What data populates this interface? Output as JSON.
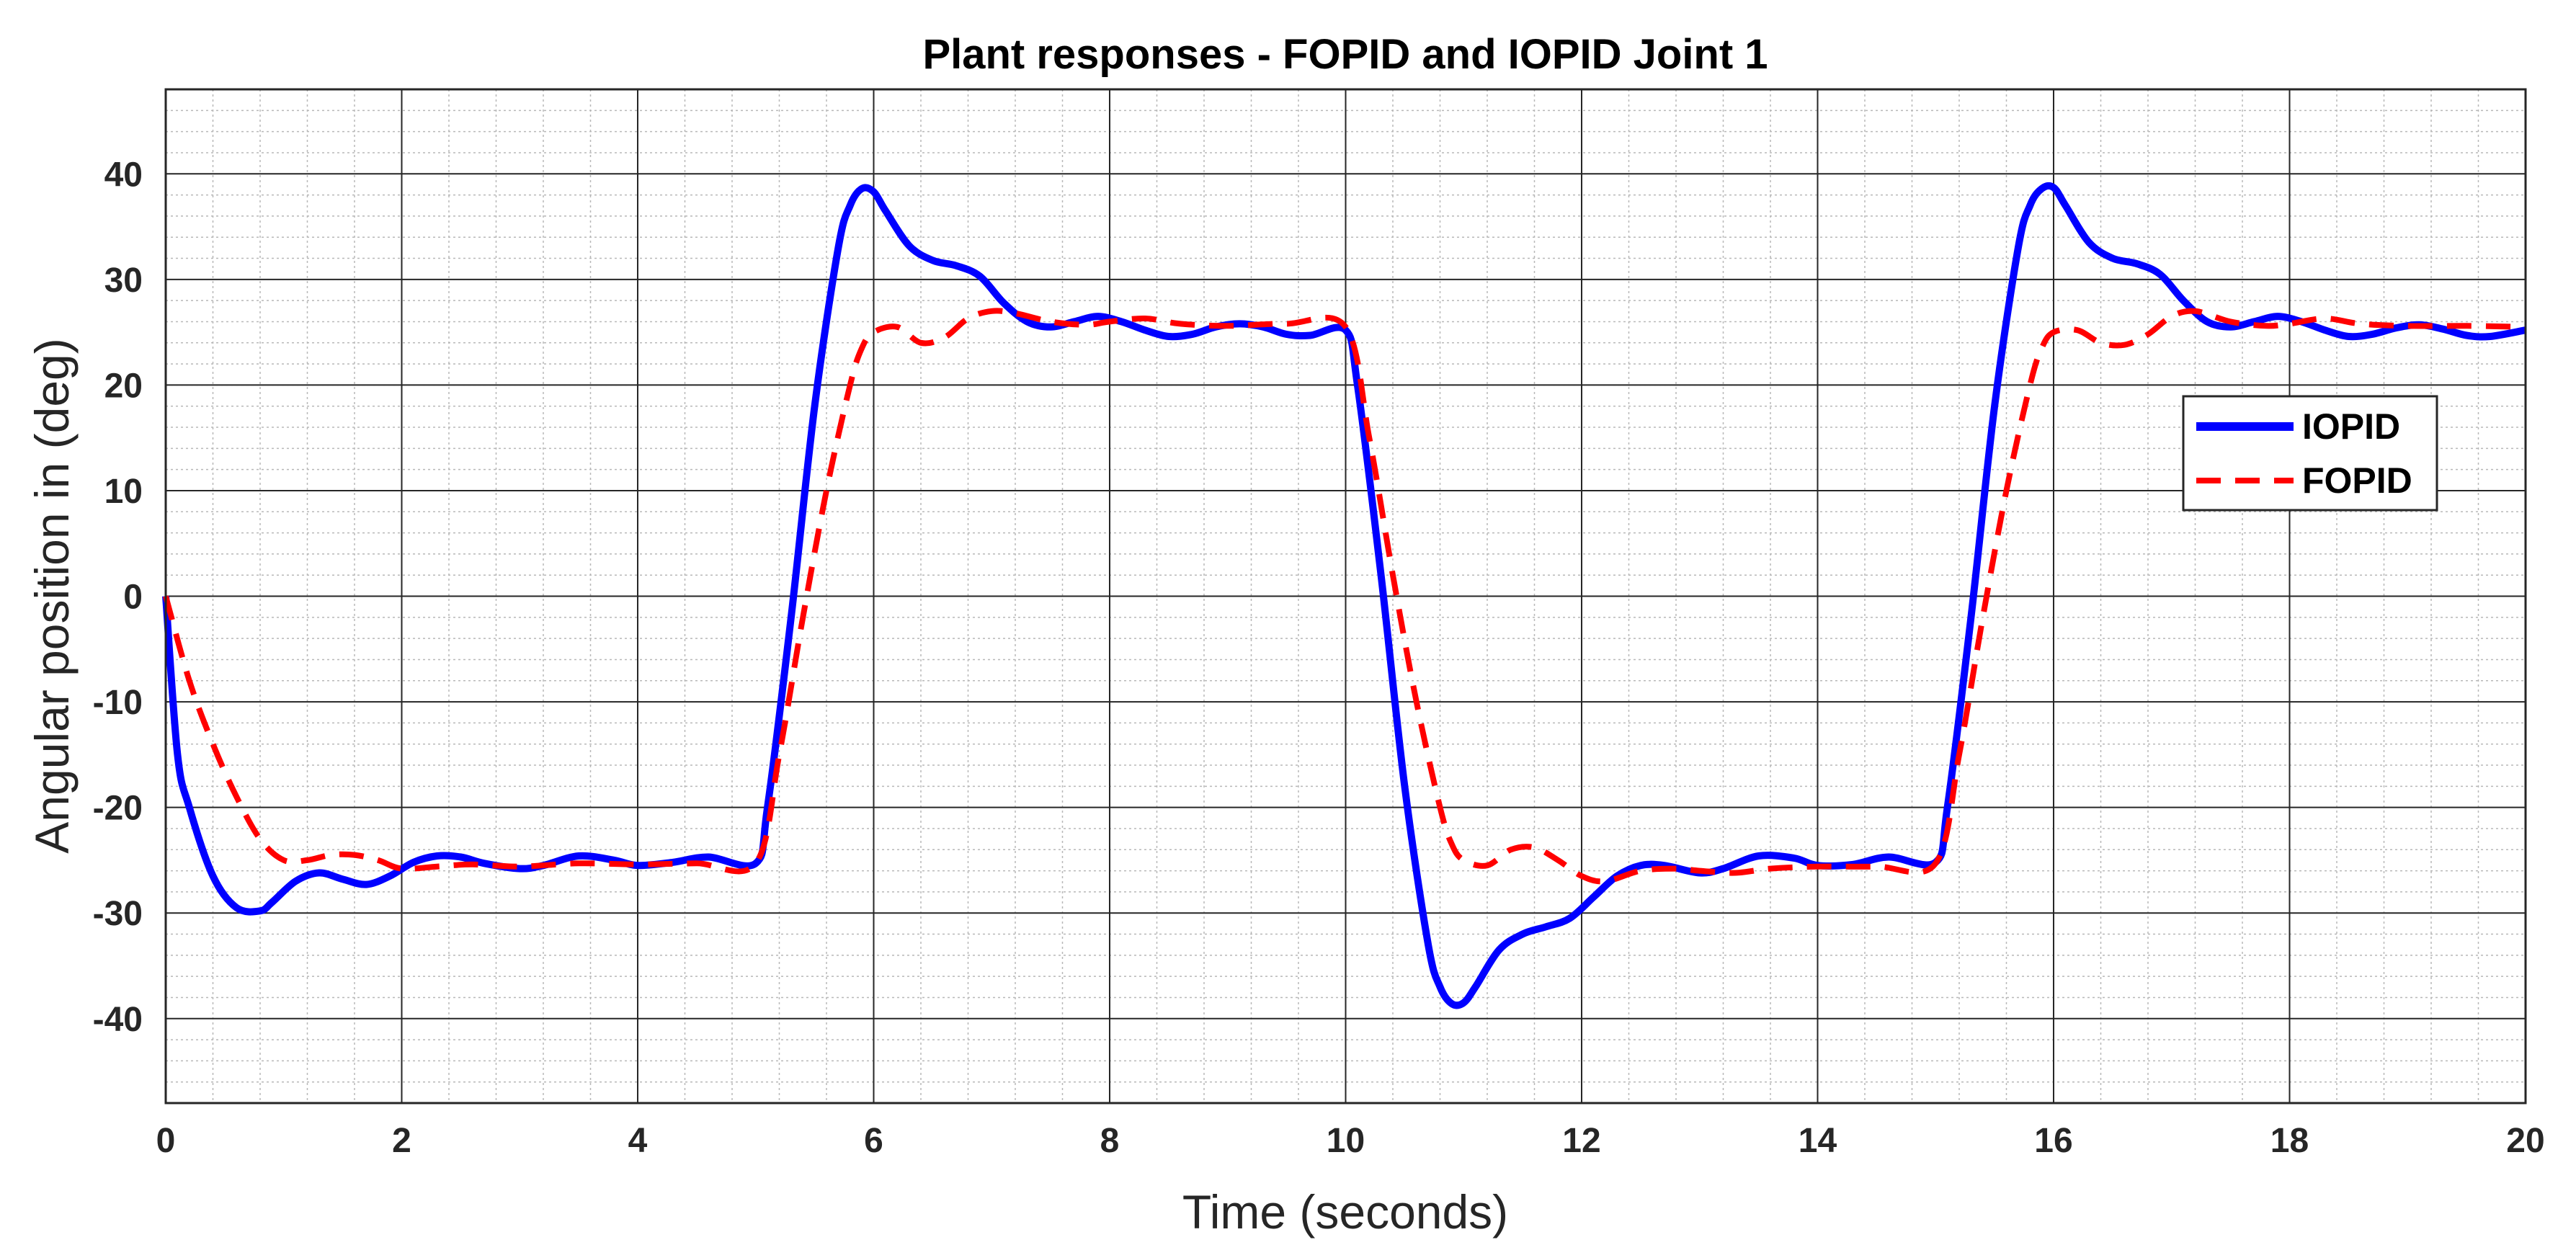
{
  "chart_data": {
    "type": "line",
    "title": "Plant responses - FOPID and IOPID Joint 1",
    "xlabel": "Time (seconds)",
    "ylabel": "Angular position in (deg)",
    "xlim": [
      0,
      20
    ],
    "ylim": [
      -48,
      48
    ],
    "xticks": [
      0,
      2,
      4,
      6,
      8,
      10,
      12,
      14,
      16,
      18,
      20
    ],
    "yticks": [
      -40,
      -30,
      -20,
      -10,
      0,
      10,
      20,
      30,
      40
    ],
    "grid": true,
    "minor_grid": true,
    "legend_position": "right",
    "series": [
      {
        "name": "IOPID",
        "color": "#0000ff",
        "style": "solid",
        "x": [
          0,
          0.1,
          0.2,
          0.4,
          0.6,
          0.8,
          0.9,
          1.1,
          1.3,
          1.5,
          1.7,
          1.9,
          2.1,
          2.3,
          2.5,
          2.7,
          3.0,
          3.2,
          3.5,
          3.8,
          4.0,
          4.3,
          4.6,
          5.0,
          5.1,
          5.3,
          5.5,
          5.7,
          5.8,
          5.9,
          6.0,
          6.1,
          6.3,
          6.5,
          6.7,
          6.9,
          7.1,
          7.3,
          7.5,
          7.7,
          7.9,
          8.1,
          8.3,
          8.5,
          8.7,
          8.9,
          9.1,
          9.3,
          9.5,
          9.7,
          10.0,
          10.1,
          10.3,
          10.5,
          10.7,
          10.8,
          10.9,
          11.0,
          11.1,
          11.3,
          11.5,
          11.7,
          11.9,
          12.1,
          12.3,
          12.5,
          12.7,
          13.0,
          13.2,
          13.5,
          13.8,
          14.0,
          14.3,
          14.6,
          15.0,
          15.1,
          15.3,
          15.5,
          15.7,
          15.8,
          15.9,
          16.0,
          16.1,
          16.3,
          16.5,
          16.7,
          16.9,
          17.1,
          17.3,
          17.5,
          17.7,
          17.9,
          18.1,
          18.3,
          18.5,
          18.7,
          18.9,
          19.1,
          19.3,
          19.5,
          19.7,
          20.0
        ],
        "y": [
          0,
          -15,
          -20,
          -26.5,
          -29.5,
          -29.8,
          -29,
          -27,
          -26.2,
          -26.8,
          -27.3,
          -26.5,
          -25.2,
          -24.6,
          -24.7,
          -25.3,
          -25.8,
          -25.5,
          -24.6,
          -25.0,
          -25.5,
          -25.2,
          -24.7,
          -25.3,
          -20,
          -2,
          18,
          33,
          37,
          38.6,
          38.3,
          36.5,
          33.2,
          31.8,
          31.3,
          30.3,
          27.8,
          26.0,
          25.5,
          26.0,
          26.5,
          26.0,
          25.2,
          24.6,
          24.8,
          25.5,
          25.8,
          25.5,
          24.8,
          24.7,
          25.2,
          20,
          2,
          -18,
          -33,
          -37,
          -38.6,
          -38.5,
          -37.0,
          -33.5,
          -32.0,
          -31.3,
          -30.5,
          -28.5,
          -26.5,
          -25.5,
          -25.5,
          -26.2,
          -25.8,
          -24.6,
          -24.8,
          -25.5,
          -25.4,
          -24.7,
          -25.2,
          -20,
          -2,
          18,
          33,
          37,
          38.6,
          38.7,
          37.0,
          33.5,
          32.0,
          31.5,
          30.5,
          28.0,
          26.0,
          25.5,
          26.0,
          26.5,
          26.0,
          25.2,
          24.6,
          24.8,
          25.4,
          25.7,
          25.3,
          24.7,
          24.6,
          25.2
        ]
      },
      {
        "name": "FOPID",
        "color": "#ff0000",
        "style": "dashed",
        "x": [
          0,
          0.2,
          0.4,
          0.6,
          0.8,
          1.0,
          1.2,
          1.4,
          1.6,
          1.8,
          2.0,
          2.3,
          2.6,
          3.0,
          3.5,
          4.0,
          4.5,
          5.0,
          5.2,
          5.4,
          5.6,
          5.8,
          5.9,
          6.0,
          6.2,
          6.4,
          6.6,
          6.8,
          7.0,
          7.2,
          7.5,
          7.8,
          8.0,
          8.3,
          8.6,
          9.0,
          9.5,
          10.0,
          10.2,
          10.4,
          10.6,
          10.8,
          10.9,
          11.0,
          11.2,
          11.4,
          11.6,
          11.8,
          12.0,
          12.2,
          12.5,
          12.8,
          13.0,
          13.3,
          13.6,
          14.0,
          14.5,
          15.0,
          15.2,
          15.4,
          15.6,
          15.8,
          15.9,
          16.0,
          16.2,
          16.4,
          16.6,
          16.8,
          17.0,
          17.2,
          17.5,
          17.8,
          18.0,
          18.3,
          18.6,
          19.0,
          19.5,
          20.0
        ],
        "y": [
          0,
          -8,
          -14,
          -19,
          -23,
          -25,
          -25,
          -24.5,
          -24.5,
          -25,
          -25.8,
          -25.6,
          -25.4,
          -25.6,
          -25.3,
          -25.4,
          -25.3,
          -25.3,
          -15,
          -2,
          10,
          20,
          23.5,
          25,
          25.5,
          24,
          24.5,
          26.3,
          27,
          26.8,
          26.0,
          25.7,
          26.0,
          26.3,
          25.8,
          25.6,
          25.8,
          25.5,
          15,
          2,
          -10,
          -20,
          -23.5,
          -25,
          -25.5,
          -24,
          -23.8,
          -25.0,
          -26.5,
          -27,
          -26.0,
          -25.8,
          -26.0,
          -26.2,
          -25.8,
          -25.6,
          -25.6,
          -25.3,
          -15,
          -2,
          10,
          20,
          23.5,
          25,
          25.2,
          24,
          23.8,
          24.8,
          26.5,
          27,
          26.0,
          25.6,
          25.8,
          26.3,
          25.8,
          25.6,
          25.6,
          25.5
        ]
      }
    ]
  }
}
